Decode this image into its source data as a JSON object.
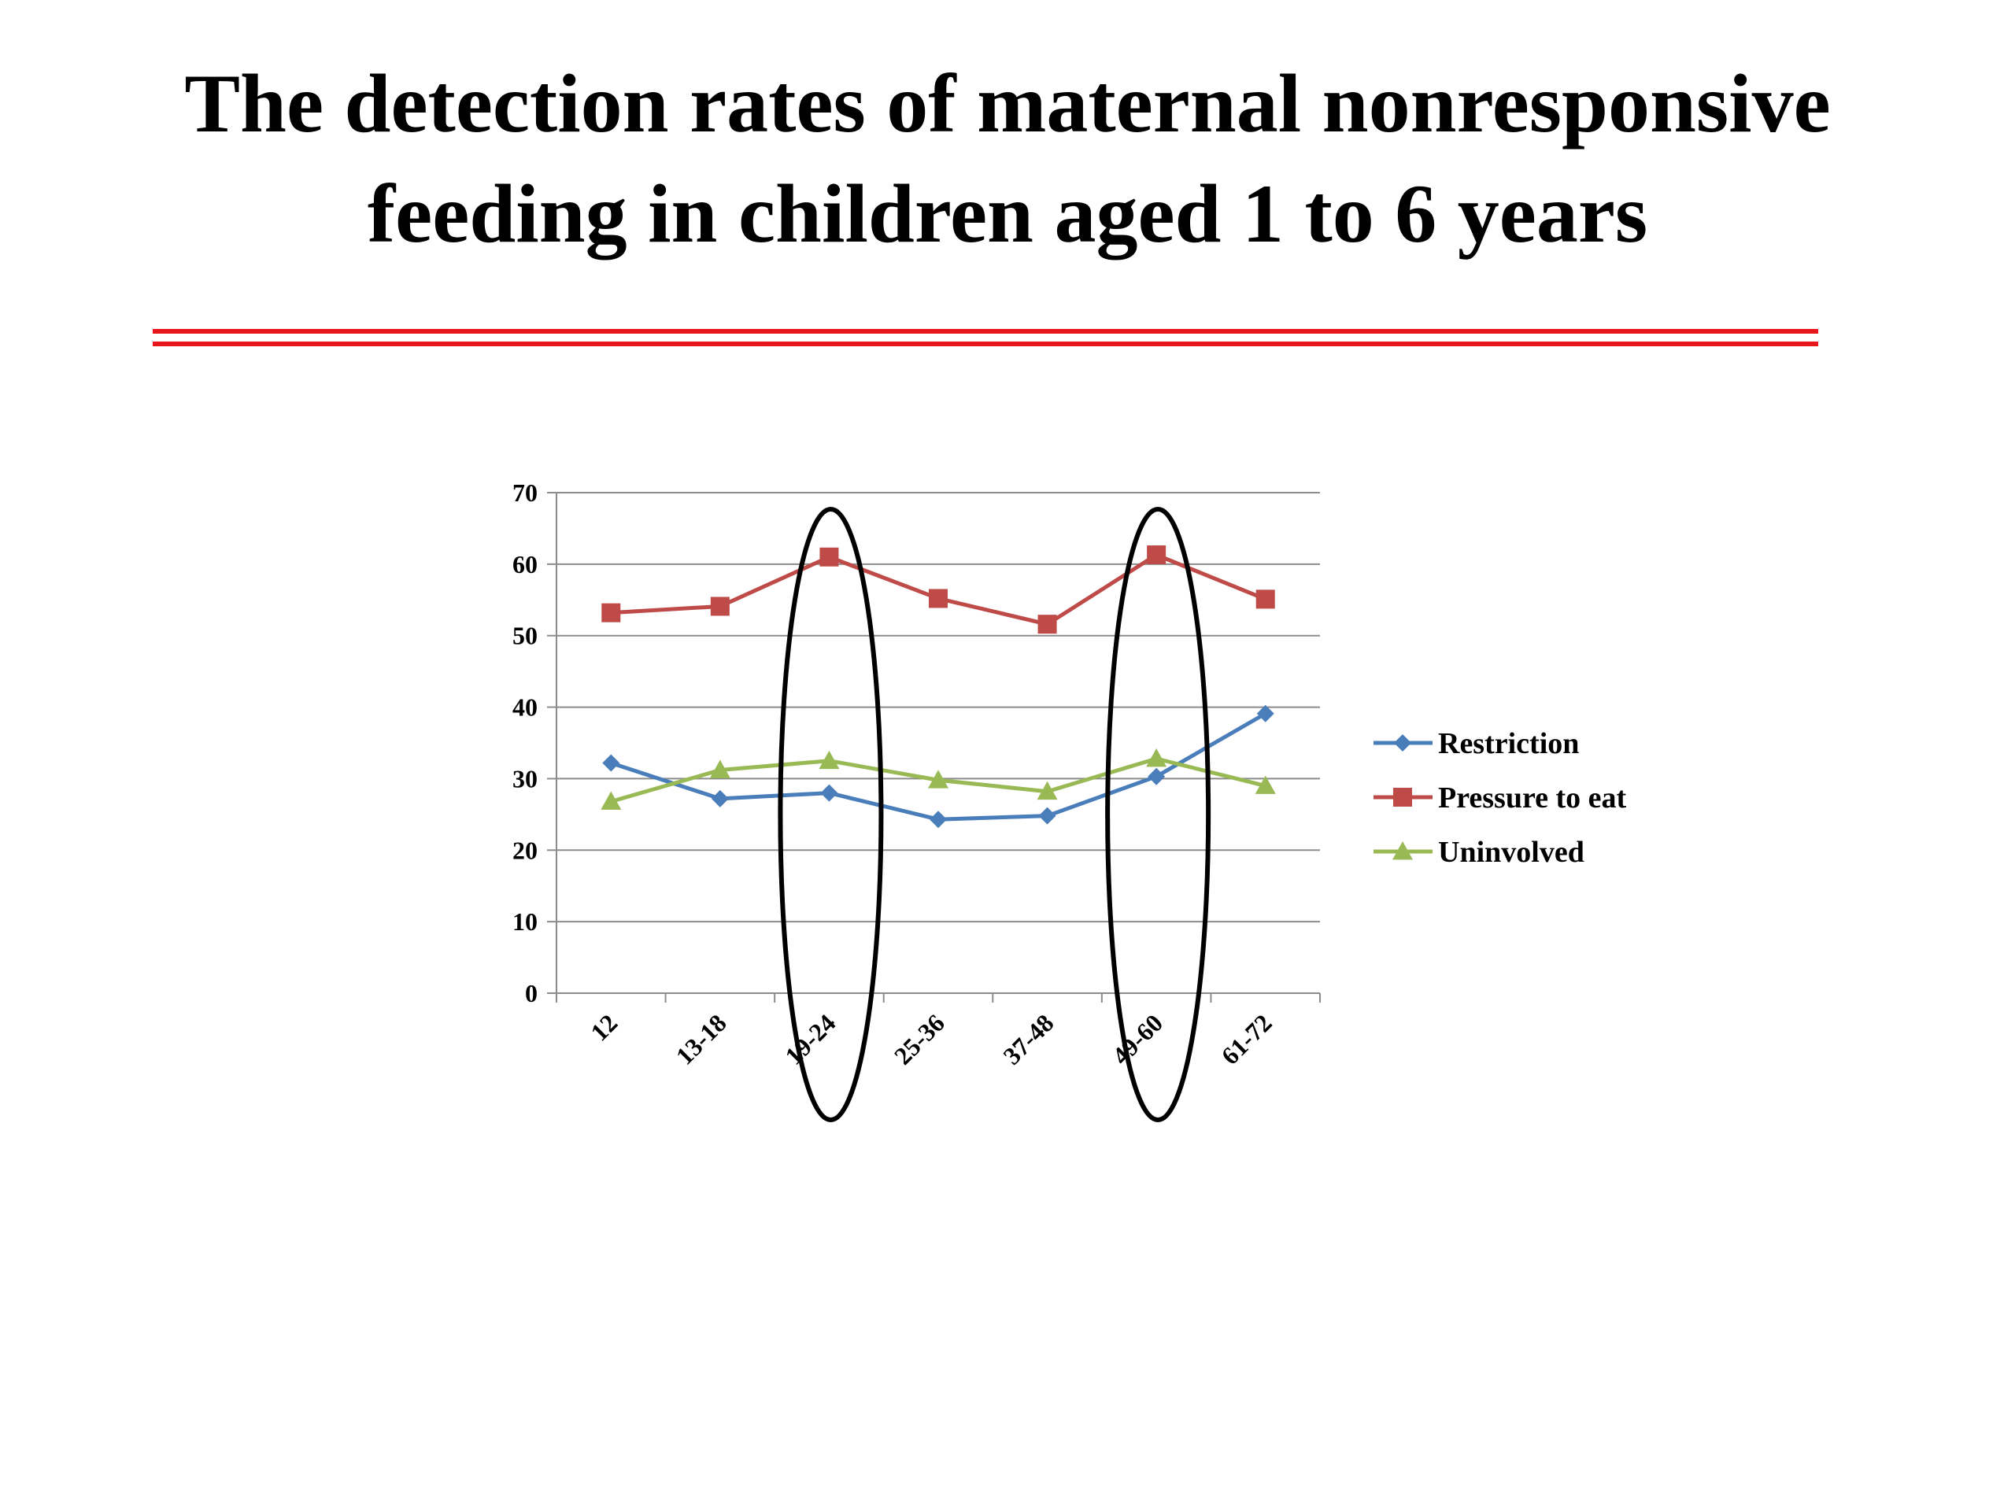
{
  "slide": {
    "title_line1": "The detection rates of maternal nonresponsive",
    "title_line2": "feeding in children aged 1 to 6 years",
    "rule_color": "#e8151b"
  },
  "chart_data": {
    "type": "line",
    "title": "",
    "xlabel": "",
    "ylabel": "",
    "categories": [
      "12",
      "13-18",
      "19-24",
      "25-36",
      "37-48",
      "49-60",
      "61-72"
    ],
    "ylim": [
      0,
      70
    ],
    "yticks": [
      0,
      10,
      20,
      30,
      40,
      50,
      60,
      70
    ],
    "grid": true,
    "legend_position": "right",
    "series": [
      {
        "name": "Restriction",
        "color": "#4a7ebb",
        "marker": "diamond",
        "values": [
          32.2,
          27.2,
          28.0,
          24.3,
          24.8,
          30.3,
          39.1
        ]
      },
      {
        "name": "Pressure to eat",
        "color": "#be4b48",
        "marker": "square",
        "values": [
          53.2,
          54.1,
          61.0,
          55.2,
          51.6,
          61.3,
          55.1
        ]
      },
      {
        "name": "Uninvolved",
        "color": "#98b954",
        "marker": "triangle",
        "values": [
          26.8,
          31.2,
          32.5,
          29.8,
          28.2,
          32.8,
          29.0
        ]
      }
    ],
    "highlighted_categories": [
      "19-24",
      "49-60"
    ]
  }
}
